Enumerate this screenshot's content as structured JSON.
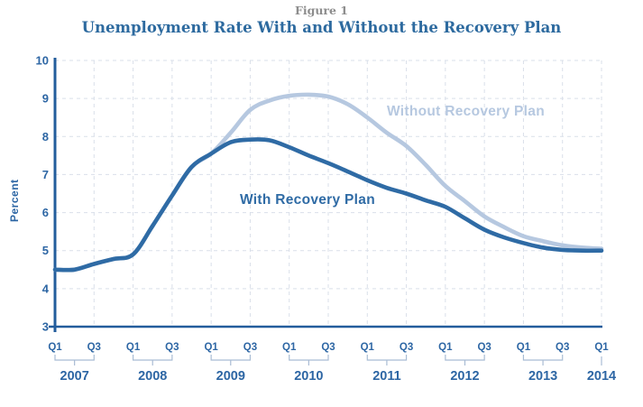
{
  "colors": {
    "with_plan_line": "#2f6ba5",
    "without_plan_line": "#b6c8e0",
    "grid": "#d9dfe9",
    "axis": "#235d9c",
    "axis_text": "#2d66a4",
    "bracket": "#a9bcd4",
    "title": "#2d6a9f",
    "figure_label": "#8d8d8d",
    "background": "#ffffff"
  },
  "chart_data": {
    "type": "line",
    "figure_label": "Figure 1",
    "title": "Unemployment Rate With and Without the Recovery Plan",
    "xlabel": "",
    "ylabel": "Percent",
    "ylim": [
      3,
      10
    ],
    "y_ticks": [
      3,
      4,
      5,
      6,
      7,
      8,
      9,
      10
    ],
    "grid": "dashed; horizontal at each integer 4-10, vertical at every Q1 and Q3",
    "legend_position": "inline labels next to lines",
    "x": [
      "2007Q1",
      "2007Q2",
      "2007Q3",
      "2007Q4",
      "2008Q1",
      "2008Q2",
      "2008Q3",
      "2008Q4",
      "2009Q1",
      "2009Q2",
      "2009Q3",
      "2009Q4",
      "2010Q1",
      "2010Q2",
      "2010Q3",
      "2010Q4",
      "2011Q1",
      "2011Q2",
      "2011Q3",
      "2011Q4",
      "2012Q1",
      "2012Q2",
      "2012Q3",
      "2012Q4",
      "2013Q1",
      "2013Q2",
      "2013Q3",
      "2013Q4",
      "2014Q1"
    ],
    "x_axis_years": [
      {
        "label": "2007",
        "quarters": [
          {
            "text": "Q1",
            "i": 0
          },
          {
            "text": "Q3",
            "i": 2
          }
        ]
      },
      {
        "label": "2008",
        "quarters": [
          {
            "text": "Q1",
            "i": 4
          },
          {
            "text": "Q3",
            "i": 6
          }
        ]
      },
      {
        "label": "2009",
        "quarters": [
          {
            "text": "Q1",
            "i": 8
          },
          {
            "text": "Q3",
            "i": 10
          }
        ]
      },
      {
        "label": "2010",
        "quarters": [
          {
            "text": "Q1",
            "i": 12
          },
          {
            "text": "Q3",
            "i": 14
          }
        ]
      },
      {
        "label": "2011",
        "quarters": [
          {
            "text": "Q1",
            "i": 16
          },
          {
            "text": "Q3",
            "i": 18
          }
        ]
      },
      {
        "label": "2012",
        "quarters": [
          {
            "text": "Q1",
            "i": 20
          },
          {
            "text": "Q3",
            "i": 22
          }
        ]
      },
      {
        "label": "2013",
        "quarters": [
          {
            "text": "Q1",
            "i": 24
          },
          {
            "text": "Q3",
            "i": 26
          }
        ]
      },
      {
        "label": "2014",
        "quarters": [
          {
            "text": "Q1",
            "i": 28
          }
        ]
      }
    ],
    "series": [
      {
        "name": "Without Recovery Plan",
        "color": "#b6c8e0",
        "values": [
          4.5,
          4.5,
          4.65,
          4.78,
          4.9,
          5.65,
          6.45,
          7.2,
          7.55,
          8.1,
          8.7,
          8.95,
          9.07,
          9.1,
          9.05,
          8.85,
          8.5,
          8.1,
          7.75,
          7.25,
          6.7,
          6.3,
          5.9,
          5.62,
          5.38,
          5.25,
          5.14,
          5.08,
          5.05
        ]
      },
      {
        "name": "With Recovery Plan",
        "color": "#2f6ba5",
        "values": [
          4.5,
          4.5,
          4.65,
          4.78,
          4.9,
          5.65,
          6.45,
          7.2,
          7.55,
          7.85,
          7.92,
          7.9,
          7.72,
          7.5,
          7.3,
          7.08,
          6.85,
          6.65,
          6.5,
          6.32,
          6.15,
          5.85,
          5.55,
          5.35,
          5.2,
          5.08,
          5.02,
          5.0,
          5.0
        ]
      }
    ]
  }
}
